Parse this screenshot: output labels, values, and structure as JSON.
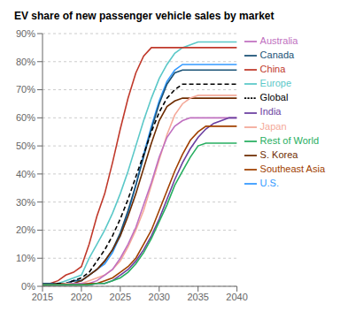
{
  "chart_data": {
    "type": "line",
    "title": "EV share of new passenger vehicle sales by market",
    "x": [
      2015,
      2016,
      2017,
      2018,
      2019,
      2020,
      2021,
      2022,
      2023,
      2024,
      2025,
      2026,
      2027,
      2028,
      2029,
      2030,
      2031,
      2032,
      2033,
      2034,
      2035,
      2036,
      2037,
      2038,
      2039,
      2040
    ],
    "series": [
      {
        "name": "Europe",
        "color": "#5BC8C8",
        "line_style": "solid",
        "values": [
          0.01,
          0.01,
          0.01,
          0.02,
          0.03,
          0.04,
          0.1,
          0.15,
          0.2,
          0.26,
          0.33,
          0.41,
          0.5,
          0.59,
          0.67,
          0.74,
          0.79,
          0.83,
          0.85,
          0.86,
          0.87,
          0.87,
          0.87,
          0.87,
          0.87,
          0.87
        ]
      },
      {
        "name": "China",
        "color": "#C0392B",
        "line_style": "solid",
        "values": [
          0.01,
          0.01,
          0.02,
          0.04,
          0.05,
          0.07,
          0.15,
          0.25,
          0.33,
          0.44,
          0.56,
          0.67,
          0.76,
          0.82,
          0.85,
          0.85,
          0.85,
          0.85,
          0.85,
          0.85,
          0.85,
          0.85,
          0.85,
          0.85,
          0.85,
          0.85
        ]
      },
      {
        "name": "U.S.",
        "color": "#3399FF",
        "line_style": "solid",
        "values": [
          0.01,
          0.01,
          0.01,
          0.01,
          0.02,
          0.02,
          0.04,
          0.06,
          0.08,
          0.12,
          0.18,
          0.26,
          0.36,
          0.47,
          0.57,
          0.66,
          0.73,
          0.77,
          0.79,
          0.79,
          0.79,
          0.79,
          0.79,
          0.79,
          0.79,
          0.79
        ]
      },
      {
        "name": "Canada",
        "color": "#1A5276",
        "line_style": "solid",
        "values": [
          0.01,
          0.01,
          0.01,
          0.01,
          0.02,
          0.02,
          0.04,
          0.06,
          0.09,
          0.13,
          0.19,
          0.27,
          0.36,
          0.46,
          0.56,
          0.65,
          0.72,
          0.76,
          0.77,
          0.77,
          0.77,
          0.77,
          0.77,
          0.77,
          0.77,
          0.77
        ]
      },
      {
        "name": "S. Korea",
        "color": "#6E2C00",
        "line_style": "solid",
        "values": [
          0.005,
          0.005,
          0.01,
          0.01,
          0.01,
          0.02,
          0.04,
          0.06,
          0.09,
          0.13,
          0.18,
          0.25,
          0.33,
          0.42,
          0.51,
          0.59,
          0.64,
          0.66,
          0.67,
          0.67,
          0.67,
          0.67,
          0.67,
          0.67,
          0.67,
          0.67
        ]
      },
      {
        "name": "Global",
        "color": "#000000",
        "line_style": "dashed",
        "values": [
          0.005,
          0.005,
          0.01,
          0.01,
          0.02,
          0.03,
          0.05,
          0.09,
          0.13,
          0.18,
          0.24,
          0.31,
          0.39,
          0.47,
          0.55,
          0.62,
          0.67,
          0.7,
          0.72,
          0.72,
          0.72,
          0.72,
          0.72,
          0.72,
          0.72,
          0.72
        ]
      },
      {
        "name": "Japan",
        "color": "#F4A999",
        "line_style": "solid",
        "values": [
          0.005,
          0.005,
          0.005,
          0.01,
          0.01,
          0.01,
          0.02,
          0.03,
          0.04,
          0.06,
          0.09,
          0.14,
          0.2,
          0.27,
          0.36,
          0.45,
          0.54,
          0.61,
          0.65,
          0.67,
          0.68,
          0.68,
          0.68,
          0.68,
          0.68,
          0.68
        ]
      },
      {
        "name": "Australia",
        "color": "#C070C0",
        "line_style": "solid",
        "values": [
          0.005,
          0.005,
          0.005,
          0.005,
          0.01,
          0.01,
          0.01,
          0.02,
          0.04,
          0.06,
          0.1,
          0.15,
          0.21,
          0.29,
          0.37,
          0.46,
          0.53,
          0.57,
          0.59,
          0.6,
          0.6,
          0.6,
          0.6,
          0.6,
          0.6,
          0.6
        ]
      },
      {
        "name": "India",
        "color": "#6B3FA0",
        "line_style": "solid",
        "values": [
          0.005,
          0.005,
          0.005,
          0.005,
          0.005,
          0.005,
          0.005,
          0.01,
          0.01,
          0.02,
          0.04,
          0.06,
          0.09,
          0.13,
          0.18,
          0.24,
          0.31,
          0.38,
          0.44,
          0.49,
          0.53,
          0.56,
          0.58,
          0.59,
          0.6,
          0.6
        ]
      },
      {
        "name": "Southeast Asia",
        "color": "#A04000",
        "line_style": "solid",
        "values": [
          0.005,
          0.005,
          0.005,
          0.005,
          0.005,
          0.005,
          0.01,
          0.01,
          0.02,
          0.03,
          0.05,
          0.07,
          0.1,
          0.15,
          0.2,
          0.27,
          0.34,
          0.41,
          0.47,
          0.52,
          0.55,
          0.57,
          0.57,
          0.57,
          0.57,
          0.57
        ]
      },
      {
        "name": "Rest of World",
        "color": "#27AE60",
        "line_style": "solid",
        "values": [
          0.005,
          0.005,
          0.005,
          0.005,
          0.005,
          0.005,
          0.005,
          0.01,
          0.01,
          0.02,
          0.03,
          0.05,
          0.08,
          0.12,
          0.17,
          0.23,
          0.29,
          0.36,
          0.41,
          0.46,
          0.5,
          0.51,
          0.51,
          0.51,
          0.51,
          0.51
        ]
      }
    ],
    "xlim": [
      2015,
      2040
    ],
    "xticks": [
      2015,
      2020,
      2025,
      2030,
      2035,
      2040
    ],
    "ylim": [
      0,
      0.9
    ],
    "yticks": [
      {
        "value": 0,
        "label": "0%"
      },
      {
        "value": 0.1,
        "label": "10%"
      },
      {
        "value": 0.2,
        "label": "20%"
      },
      {
        "value": 0.3,
        "label": "30%"
      },
      {
        "value": 0.4,
        "label": "40%"
      },
      {
        "value": 0.5,
        "label": "50%"
      },
      {
        "value": 0.6,
        "label": "60%"
      },
      {
        "value": 0.7,
        "label": "70%"
      },
      {
        "value": 0.8,
        "label": "80%"
      },
      {
        "value": 0.9,
        "label": "90%"
      }
    ],
    "grid": "y",
    "legend": "right"
  }
}
